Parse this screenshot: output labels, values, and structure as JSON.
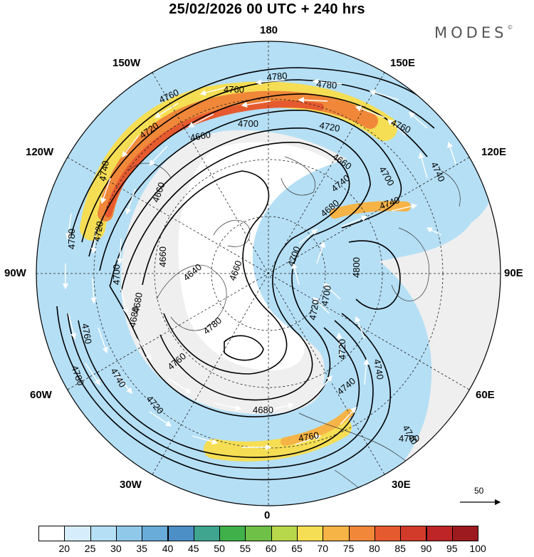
{
  "header": {
    "title": "25/02/2026  00 UTC  + 240 hrs",
    "brand": "MODES"
  },
  "map": {
    "projection": "north-polar-stereographic",
    "longitude_labels": {
      "top": "180",
      "upper_left": "150W",
      "upper_right": "150E",
      "left_upper": "120W",
      "right_upper": "120E",
      "left": "90W",
      "right": "90E",
      "left_lower": "60W",
      "right_lower": "60E",
      "lower_left": "30W",
      "lower_right": "30E",
      "bottom": "0"
    },
    "contour_labels": [
      "4780",
      "4780",
      "4760",
      "4760",
      "4700",
      "4720",
      "4720",
      "4660",
      "4740",
      "4760",
      "4740",
      "4700",
      "4660",
      "4660",
      "4680",
      "4740",
      "4640",
      "4660",
      "4680",
      "4700",
      "4720",
      "4660",
      "4720",
      "4700",
      "4800",
      "4740",
      "4720",
      "4700",
      "4680",
      "4760",
      "4740",
      "4780",
      "4680",
      "4740",
      "4760",
      "4780",
      "4740",
      "4760",
      "4780",
      "4700",
      "4720",
      "4740"
    ],
    "vector_reference": "50",
    "colors": {
      "land": "#eeeeee",
      "ocean_white": "#ffffff",
      "contour": "#000000",
      "wind_arrow": "#ffffff"
    }
  },
  "colorbar": {
    "ticks": [
      "20",
      "25",
      "30",
      "35",
      "40",
      "45",
      "50",
      "55",
      "60",
      "65",
      "70",
      "75",
      "80",
      "85",
      "90",
      "95",
      "100"
    ],
    "colors": [
      "#ffffff",
      "#d6eefb",
      "#b5dff5",
      "#90c8ea",
      "#69acd9",
      "#4c8ec6",
      "#3fa58f",
      "#3fb04a",
      "#6ec047",
      "#b8d84b",
      "#f5de54",
      "#f6b346",
      "#f08739",
      "#e65a2f",
      "#d23a2a",
      "#bd2526",
      "#9d1b1f"
    ]
  }
}
